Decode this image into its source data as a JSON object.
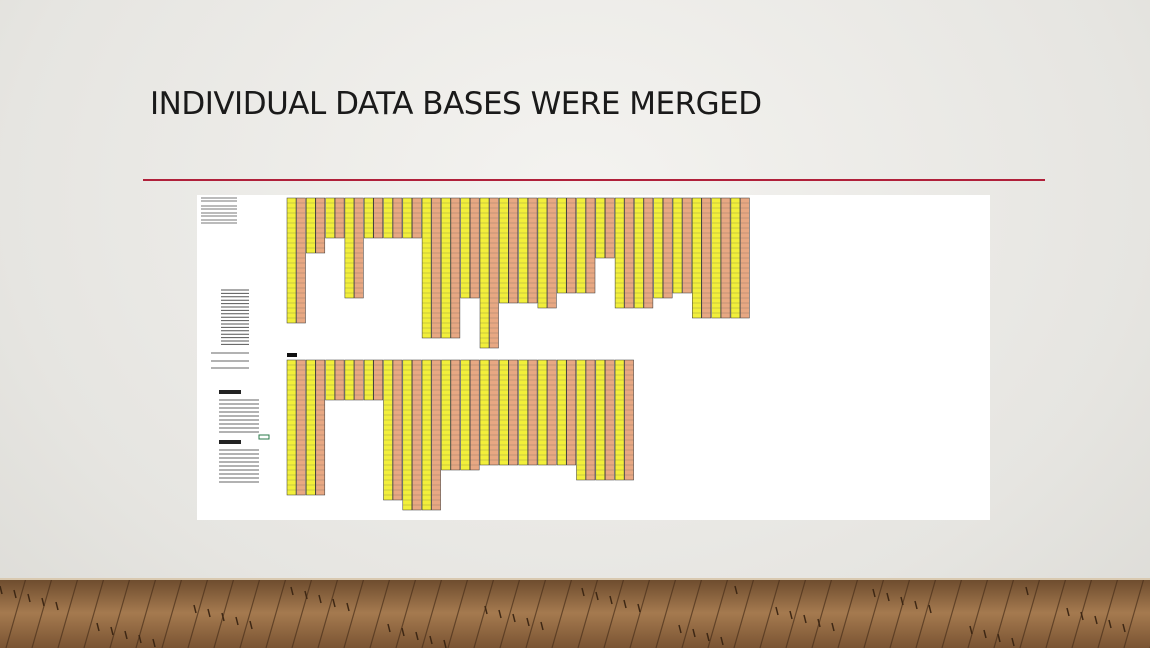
{
  "slide": {
    "title": "INDIVIDUAL DATA BASES WERE MERGED"
  }
}
